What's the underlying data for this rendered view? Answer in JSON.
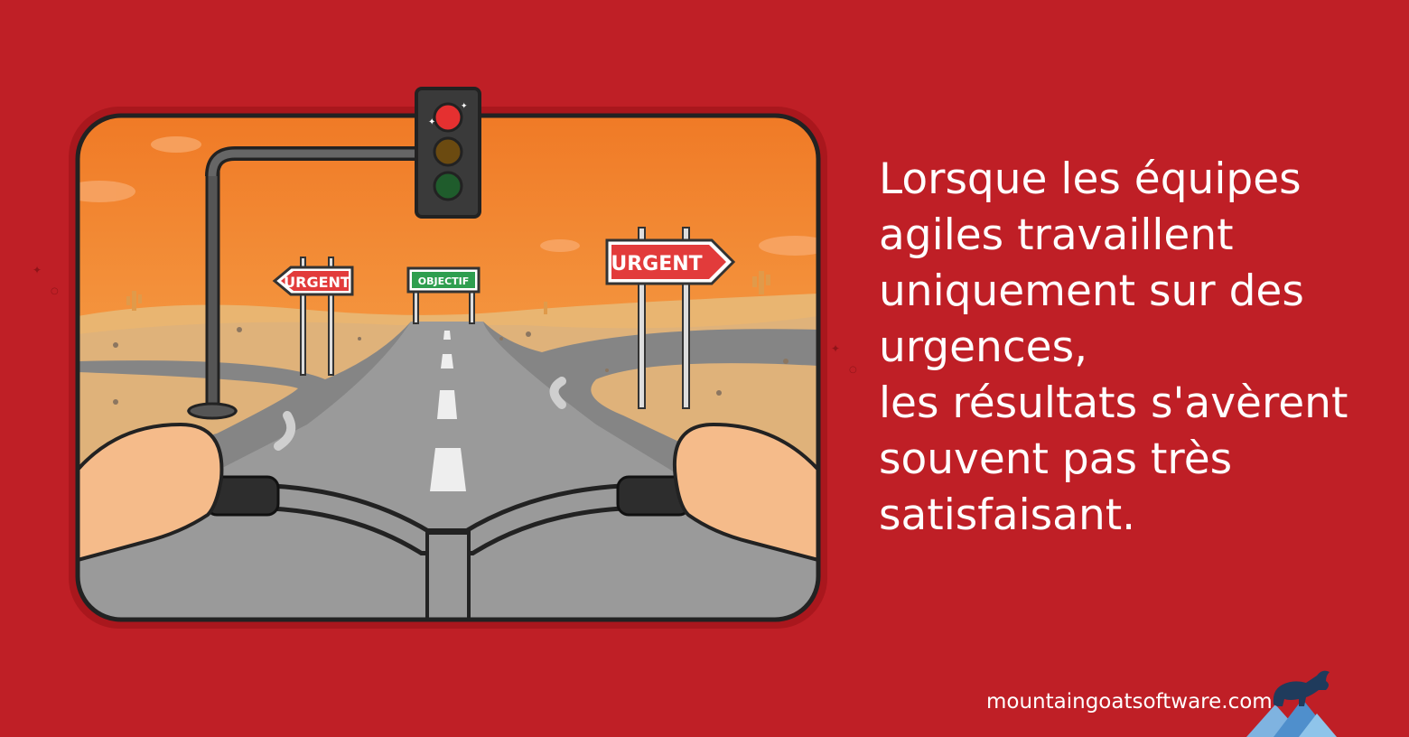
{
  "quote": {
    "lines": [
      "Lorsque les équipes",
      "agiles travaillent",
      "uniquement sur des",
      "urgences,",
      "les résultats s'avèrent",
      "souvent pas très",
      "satisfaisant."
    ]
  },
  "signs": {
    "left": "URGENT",
    "center": "OBJECTIF",
    "right": "URGENT"
  },
  "footer": {
    "url": "mountaingoatsoftware.com"
  },
  "colors": {
    "background": "#bf1f26",
    "sign_red": "#e23b3b",
    "sign_green": "#2e9e4f",
    "sky_top": "#f2862a",
    "sky_bottom": "#f8b35a"
  },
  "icons": {
    "logo": "mountain-goat-logo-icon"
  }
}
